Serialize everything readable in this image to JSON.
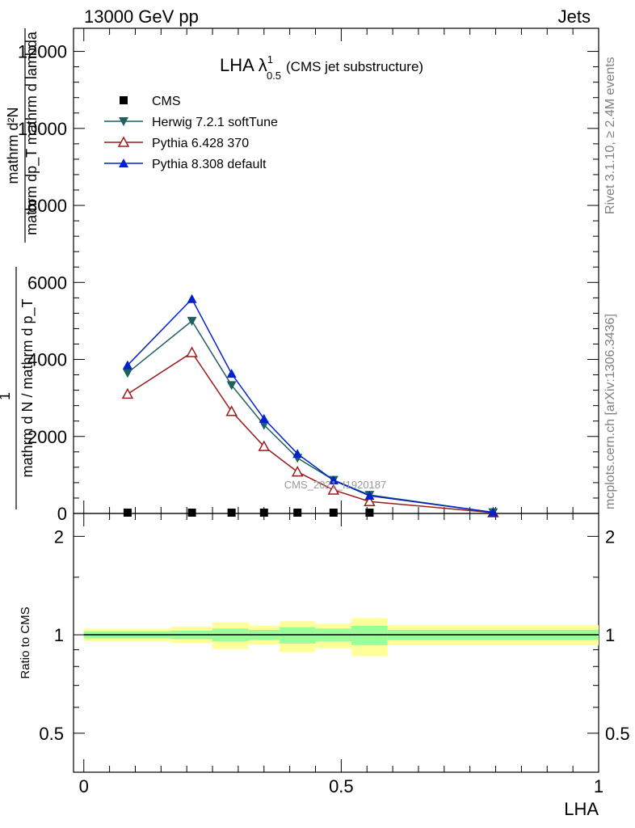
{
  "header": {
    "left": "13000 GeV pp",
    "right": "Jets"
  },
  "side": {
    "rivet": "Rivet 3.1.10, ≥ 2.4M events",
    "mcplots": "mcplots.cern.ch [arXiv:1306.3436]"
  },
  "plot_title": {
    "main": "LHA λ",
    "sup": "1",
    "sub": "0.5",
    "rest": "(CMS jet substructure)"
  },
  "watermark": "CMS_2021_I1920187",
  "chart_data": [
    {
      "type": "line",
      "panel": "main",
      "ylabel_numerator": "mathrm d²N",
      "ylabel_frac_a": "mathrm dp_T mathrm d lambda",
      "ylabel_one": "1",
      "ylabel_denominator": "mathrm d N / mathrm d p_T",
      "ylim": [
        0,
        12600
      ],
      "xlim": [
        -0.02,
        1.0
      ],
      "yticks": [
        0,
        2000,
        4000,
        6000,
        8000,
        10000,
        12000
      ],
      "ytick_labels": [
        "0",
        "2000",
        "4000",
        "6000",
        "8000",
        "10000",
        "12000"
      ],
      "series": [
        {
          "name": "CMS",
          "color": "#000000",
          "marker": "square",
          "x": [
            0.085,
            0.21,
            0.287,
            0.35,
            0.415,
            0.485,
            0.555
          ],
          "y": [
            0,
            0,
            0,
            0,
            0,
            0,
            0
          ]
        },
        {
          "name": "Herwig 7.2.1 softTune",
          "color": "#1f5f5f",
          "marker": "triangle-down",
          "x": [
            0.085,
            0.21,
            0.287,
            0.35,
            0.415,
            0.485,
            0.555,
            0.795
          ],
          "y": [
            3650,
            5000,
            3330,
            2300,
            1440,
            870,
            480,
            30
          ]
        },
        {
          "name": "Pythia 6.428 370",
          "color": "#9b1c1c",
          "marker": "triangle-open",
          "x": [
            0.085,
            0.21,
            0.287,
            0.35,
            0.415,
            0.485,
            0.555,
            0.795
          ],
          "y": [
            3100,
            4180,
            2650,
            1740,
            1080,
            610,
            310,
            20
          ]
        },
        {
          "name": "Pythia 8.308 default",
          "color": "#0022cc",
          "marker": "triangle-up",
          "x": [
            0.085,
            0.21,
            0.287,
            0.35,
            0.415,
            0.485,
            0.555,
            0.795
          ],
          "y": [
            3850,
            5570,
            3630,
            2460,
            1550,
            860,
            460,
            30
          ]
        }
      ]
    },
    {
      "type": "area",
      "panel": "ratio",
      "ylabel": "Ratio to CMS",
      "xlabel": "LHA",
      "ylim": [
        0.38,
        2.35
      ],
      "xlim": [
        -0.02,
        1.0
      ],
      "log_y": true,
      "yticks": [
        0.5,
        1,
        2
      ],
      "ytick_labels": [
        "0.5",
        "1",
        "2"
      ],
      "xticks": [
        0,
        0.5,
        1
      ],
      "xtick_labels": [
        "0",
        "0.5",
        "1"
      ],
      "bins": [
        {
          "lo": 0.0,
          "hi": 0.17,
          "y_lo": 0.955,
          "y_hi": 1.045,
          "g_lo": 0.975,
          "g_hi": 1.025
        },
        {
          "lo": 0.17,
          "hi": 0.25,
          "y_lo": 0.945,
          "y_hi": 1.06,
          "g_lo": 0.97,
          "g_hi": 1.03
        },
        {
          "lo": 0.25,
          "hi": 0.32,
          "y_lo": 0.905,
          "y_hi": 1.09,
          "g_lo": 0.955,
          "g_hi": 1.045
        },
        {
          "lo": 0.32,
          "hi": 0.38,
          "y_lo": 0.935,
          "y_hi": 1.065,
          "g_lo": 0.965,
          "g_hi": 1.035
        },
        {
          "lo": 0.38,
          "hi": 0.45,
          "y_lo": 0.885,
          "y_hi": 1.1,
          "g_lo": 0.94,
          "g_hi": 1.055
        },
        {
          "lo": 0.45,
          "hi": 0.52,
          "y_lo": 0.91,
          "y_hi": 1.08,
          "g_lo": 0.955,
          "g_hi": 1.045
        },
        {
          "lo": 0.52,
          "hi": 0.59,
          "y_lo": 0.86,
          "y_hi": 1.125,
          "g_lo": 0.93,
          "g_hi": 1.065
        },
        {
          "lo": 0.59,
          "hi": 1.0,
          "y_lo": 0.93,
          "y_hi": 1.07,
          "g_lo": 0.965,
          "g_hi": 1.035
        }
      ],
      "reference": 1,
      "band_colors": {
        "outer": "#ffff99",
        "inner": "#99ff99"
      }
    }
  ]
}
